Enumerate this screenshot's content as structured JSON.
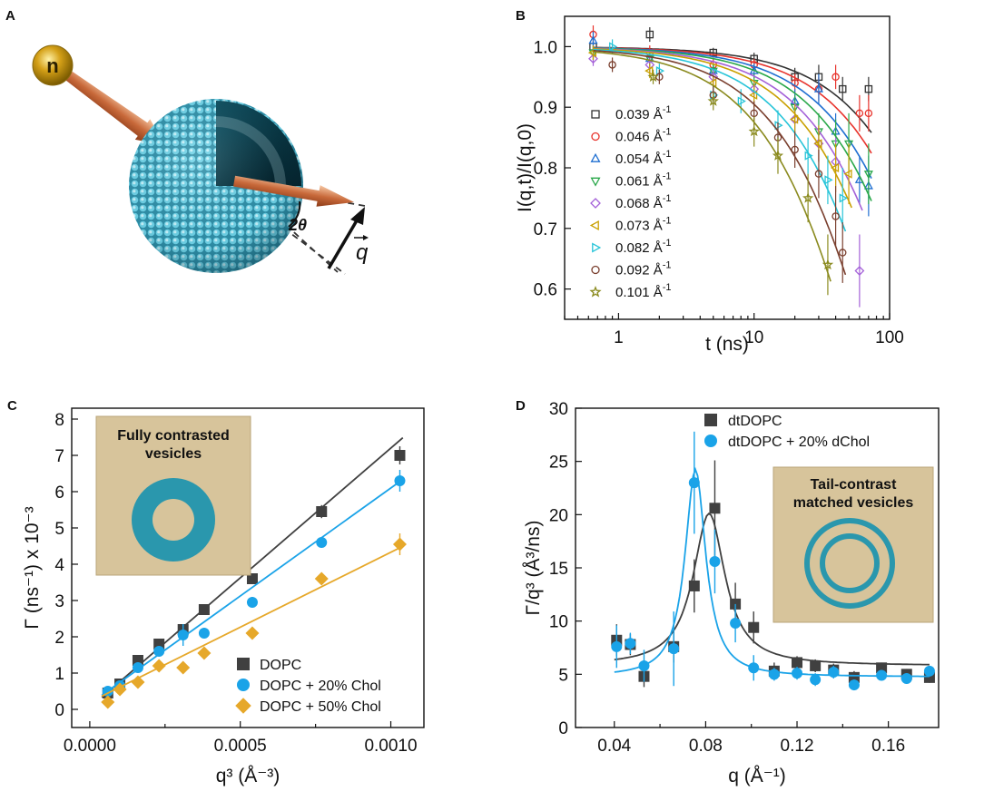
{
  "panel_labels": {
    "a": "A",
    "b": "B",
    "c": "C",
    "d": "D"
  },
  "panel_a": {
    "neutron_label": "n",
    "angle_label": "2θ",
    "q_label": "q"
  },
  "chart_data": [
    {
      "panel": "B",
      "type": "scatter",
      "xscale": "log",
      "title": "",
      "xlabel": "t (ns)",
      "ylabel": "I(q,t)/I(q,0)",
      "xlim": [
        0.4,
        100
      ],
      "ylim": [
        0.55,
        1.05
      ],
      "xticks": [
        1,
        10,
        100
      ],
      "xtick_labels": [
        "1",
        "10",
        "100"
      ],
      "yticks": [
        0.6,
        0.7,
        0.8,
        0.9,
        1.0
      ],
      "ytick_labels": [
        "0.6",
        "0.7",
        "0.8",
        "0.9",
        "1.0"
      ],
      "legend_position": "left",
      "series": [
        {
          "name": "0.039 Å",
          "exp": "-1",
          "color": "#333333",
          "marker": "square",
          "x": [
            0.65,
            1.7,
            5,
            10,
            20,
            30,
            45,
            70
          ],
          "y": [
            1.0,
            1.02,
            0.99,
            0.98,
            0.95,
            0.95,
            0.93,
            0.93
          ],
          "err": [
            0.015,
            0.012,
            0.008,
            0.01,
            0.015,
            0.02,
            0.02,
            0.02
          ],
          "fit_tau": 480,
          "fit_beta": 1
        },
        {
          "name": "0.046 Å",
          "exp": "-1",
          "color": "#e8332c",
          "marker": "circle",
          "x": [
            0.65,
            1.7,
            5,
            10,
            20,
            30,
            40,
            60,
            70
          ],
          "y": [
            1.02,
            0.99,
            0.97,
            0.97,
            0.94,
            0.93,
            0.95,
            0.89,
            0.89
          ],
          "err": [
            0.015,
            0.012,
            0.01,
            0.01,
            0.015,
            0.02,
            0.02,
            0.03,
            0.03
          ],
          "fit_tau": 380,
          "fit_beta": 1
        },
        {
          "name": "0.054 Å",
          "exp": "-1",
          "color": "#1f6fd1",
          "marker": "triangle-up",
          "x": [
            0.65,
            1.7,
            5,
            10,
            20,
            30,
            40,
            60,
            70
          ],
          "y": [
            1.01,
            0.98,
            0.96,
            0.96,
            0.91,
            0.93,
            0.86,
            0.78,
            0.77
          ],
          "err": [
            0.015,
            0.012,
            0.01,
            0.012,
            0.02,
            0.025,
            0.03,
            0.04,
            0.05
          ],
          "fit_tau": 300,
          "fit_beta": 1
        },
        {
          "name": "0.061 Å",
          "exp": "-1",
          "color": "#2aa84a",
          "marker": "triangle-down",
          "x": [
            0.65,
            1.7,
            5,
            10,
            20,
            30,
            40,
            50,
            70
          ],
          "y": [
            0.99,
            0.98,
            0.96,
            0.94,
            0.9,
            0.86,
            0.84,
            0.84,
            0.79
          ],
          "err": [
            0.012,
            0.012,
            0.012,
            0.015,
            0.02,
            0.03,
            0.04,
            0.05,
            0.05
          ],
          "fit_tau": 250,
          "fit_beta": 1
        },
        {
          "name": "0.068 Å",
          "exp": "-1",
          "color": "#a461d8",
          "marker": "diamond",
          "x": [
            0.65,
            1.7,
            5,
            10,
            20,
            30,
            40,
            60
          ],
          "y": [
            0.98,
            0.97,
            0.95,
            0.93,
            0.88,
            0.84,
            0.81,
            0.63
          ],
          "err": [
            0.012,
            0.012,
            0.012,
            0.015,
            0.025,
            0.03,
            0.04,
            0.06
          ],
          "fit_tau": 200,
          "fit_beta": 1
        },
        {
          "name": "0.073 Å",
          "exp": "-1",
          "color": "#c9a000",
          "marker": "triangle-left",
          "x": [
            0.65,
            1.7,
            5,
            10,
            20,
            30,
            40,
            50
          ],
          "y": [
            0.99,
            0.96,
            0.94,
            0.92,
            0.88,
            0.84,
            0.8,
            0.79
          ],
          "err": [
            0.012,
            0.012,
            0.012,
            0.02,
            0.025,
            0.03,
            0.04,
            0.05
          ],
          "fit_tau": 170,
          "fit_beta": 1
        },
        {
          "name": "0.082 Å",
          "exp": "-1",
          "color": "#27c4d8",
          "marker": "triangle-right",
          "x": [
            0.9,
            2,
            5,
            8,
            15,
            25,
            35,
            45
          ],
          "y": [
            1.0,
            0.96,
            0.92,
            0.91,
            0.87,
            0.82,
            0.78,
            0.75
          ],
          "err": [
            0.012,
            0.012,
            0.015,
            0.02,
            0.025,
            0.03,
            0.04,
            0.05
          ],
          "fit_tau": 130,
          "fit_beta": 1
        },
        {
          "name": "0.092 Å",
          "exp": "-1",
          "color": "#7a3f2e",
          "marker": "circle",
          "x": [
            0.9,
            2,
            5,
            10,
            15,
            20,
            30,
            40,
            45
          ],
          "y": [
            0.97,
            0.95,
            0.92,
            0.89,
            0.85,
            0.83,
            0.79,
            0.72,
            0.66
          ],
          "err": [
            0.012,
            0.012,
            0.015,
            0.02,
            0.025,
            0.03,
            0.04,
            0.05,
            0.05
          ],
          "fit_tau": 100,
          "fit_beta": 1
        },
        {
          "name": "0.101 Å",
          "exp": "-1",
          "color": "#8a8a1e",
          "marker": "star",
          "x": [
            1.8,
            5,
            10,
            15,
            25,
            35
          ],
          "y": [
            0.95,
            0.91,
            0.86,
            0.82,
            0.75,
            0.64
          ],
          "err": [
            0.012,
            0.015,
            0.025,
            0.03,
            0.04,
            0.05
          ],
          "fit_tau": 75,
          "fit_beta": 1
        }
      ]
    },
    {
      "panel": "C",
      "type": "scatter",
      "title": "",
      "xlabel": "q³ (Å⁻³)",
      "ylabel": "Γ (ns⁻¹) x 10⁻³",
      "xlim": [
        -6e-05,
        0.00111
      ],
      "ylim": [
        -0.5,
        8.3
      ],
      "xticks": [
        0,
        0.0005,
        0.001
      ],
      "xtick_labels": [
        "0.0000",
        "0.0005",
        "0.0010"
      ],
      "yticks": [
        0,
        1,
        2,
        3,
        4,
        5,
        6,
        7,
        8
      ],
      "ytick_labels": [
        "0",
        "1",
        "2",
        "3",
        "4",
        "5",
        "6",
        "7",
        "8"
      ],
      "inset_title": [
        "Fully contrasted",
        "vesicles"
      ],
      "legend_position": "bottom-right",
      "series": [
        {
          "name": "DOPC",
          "color": "#404040",
          "marker": "square",
          "x": [
            6e-05,
            0.0001,
            0.00016,
            0.00023,
            0.00031,
            0.00038,
            0.00054,
            0.00077,
            0.00103
          ],
          "y": [
            0.45,
            0.7,
            1.35,
            1.8,
            2.2,
            2.75,
            3.6,
            5.45,
            7.0
          ],
          "err": [
            0.1,
            0.1,
            0.1,
            0.12,
            0.12,
            0.12,
            0.15,
            0.18,
            0.25
          ],
          "fit": {
            "slope": 7150,
            "intercept": 0.05
          }
        },
        {
          "name": "DOPC + 20% Chol",
          "color": "#1aa3e8",
          "marker": "circle",
          "x": [
            6e-05,
            0.0001,
            0.00016,
            0.00023,
            0.00031,
            0.00038,
            0.00054,
            0.00077,
            0.00103
          ],
          "y": [
            0.5,
            0.65,
            1.15,
            1.6,
            2.05,
            2.1,
            2.95,
            4.6,
            6.3
          ],
          "err": [
            0.1,
            0.1,
            0.12,
            0.12,
            0.3,
            0.15,
            0.15,
            0.15,
            0.3
          ],
          "fit": {
            "slope": 5950,
            "intercept": 0.15
          }
        },
        {
          "name": "DOPC + 50% Chol",
          "color": "#e6a82a",
          "marker": "diamond",
          "x": [
            6e-05,
            0.0001,
            0.00016,
            0.00023,
            0.00031,
            0.00038,
            0.00054,
            0.00077,
            0.00103
          ],
          "y": [
            0.2,
            0.55,
            0.75,
            1.2,
            1.15,
            1.55,
            2.1,
            3.6,
            4.55
          ],
          "err": [
            0.08,
            0.08,
            0.08,
            0.1,
            0.1,
            0.1,
            0.12,
            0.15,
            0.3
          ],
          "fit": {
            "slope": 4130,
            "intercept": 0.2
          }
        }
      ]
    },
    {
      "panel": "D",
      "type": "scatter",
      "title": "",
      "xlabel": "q (Å⁻¹)",
      "ylabel": "Γ/q³ (Å³/ns)",
      "xlim": [
        0.023,
        0.182
      ],
      "ylim": [
        0,
        30
      ],
      "xticks": [
        0.04,
        0.08,
        0.12,
        0.16
      ],
      "xtick_labels": [
        "0.04",
        "0.08",
        "0.12",
        "0.16"
      ],
      "yticks": [
        0,
        5,
        10,
        15,
        20,
        25,
        30
      ],
      "ytick_labels": [
        "0",
        "5",
        "10",
        "15",
        "20",
        "25",
        "30"
      ],
      "inset_title": [
        "Tail-contrast",
        "matched vesicles"
      ],
      "legend_position": "top-right",
      "series": [
        {
          "name": "dtDOPC",
          "color": "#404040",
          "marker": "square",
          "x": [
            0.041,
            0.047,
            0.053,
            0.066,
            0.075,
            0.084,
            0.093,
            0.101,
            0.11,
            0.12,
            0.128,
            0.136,
            0.145,
            0.157,
            0.168,
            0.178
          ],
          "y": [
            8.2,
            7.8,
            4.8,
            7.6,
            13.3,
            20.6,
            11.6,
            9.4,
            5.3,
            6.1,
            5.8,
            5.4,
            4.7,
            5.6,
            5.0,
            4.7
          ],
          "err": [
            1.5,
            1.0,
            1.0,
            1.5,
            2.5,
            4.5,
            2.0,
            1.5,
            0.8,
            0.6,
            0.6,
            0.6,
            0.6,
            0.5,
            0.5,
            0.5
          ],
          "fit": {
            "baseline": 5.8,
            "amp": 14.3,
            "center": 0.0815,
            "width": 0.0085
          }
        },
        {
          "name": "dtDOPC + 20% dChol",
          "color": "#1aa3e8",
          "marker": "circle",
          "x": [
            0.041,
            0.047,
            0.053,
            0.066,
            0.075,
            0.084,
            0.093,
            0.101,
            0.11,
            0.12,
            0.128,
            0.136,
            0.145,
            0.157,
            0.168,
            0.178
          ],
          "y": [
            7.6,
            7.9,
            5.8,
            7.4,
            23.0,
            15.6,
            9.8,
            5.6,
            5.0,
            5.1,
            4.5,
            5.2,
            4.0,
            4.9,
            4.6,
            5.3
          ],
          "err": [
            2.0,
            1.0,
            1.5,
            3.5,
            4.8,
            3.0,
            1.8,
            1.2,
            0.6,
            0.6,
            0.6,
            0.6,
            0.5,
            0.5,
            0.5,
            0.5
          ],
          "fit": {
            "baseline": 4.75,
            "amp": 19.5,
            "center": 0.0755,
            "width": 0.0055
          }
        }
      ]
    }
  ]
}
